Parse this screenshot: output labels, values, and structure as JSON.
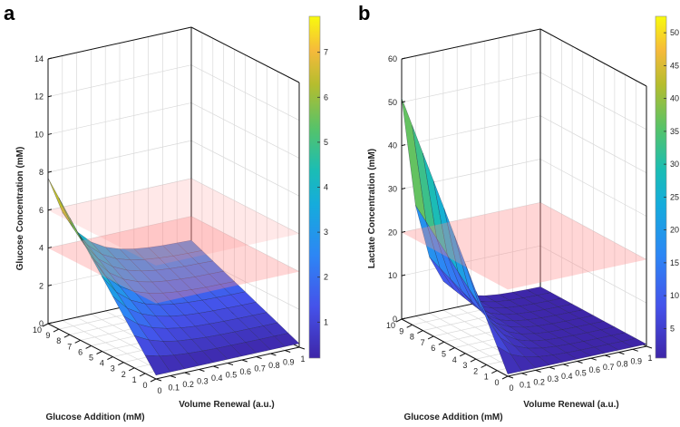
{
  "chart_data": [
    {
      "type": "surface",
      "panel_label": "a",
      "xlabel": "Volume Renewal (a.u.)",
      "ylabel": "Glucose Addition (mM)",
      "zlabel": "Glucose Concentration (mM)",
      "xlim": [
        0,
        1
      ],
      "ylim": [
        0,
        10
      ],
      "zlim": [
        0,
        14
      ],
      "x_ticks": [
        "0",
        "0.1",
        "0.2",
        "0.3",
        "0.4",
        "0.5",
        "0.6",
        "0.7",
        "0.8",
        "0.9",
        "1"
      ],
      "y_ticks": [
        "0",
        "1",
        "2",
        "3",
        "4",
        "5",
        "6",
        "7",
        "8",
        "9",
        "10"
      ],
      "z_ticks": [
        "0",
        "2",
        "4",
        "6",
        "8",
        "10",
        "12",
        "14"
      ],
      "x": [
        0,
        0.1,
        0.2,
        0.3,
        0.4,
        0.5,
        0.6,
        0.7,
        0.8,
        0.9,
        1
      ],
      "y": [
        0,
        1,
        2,
        3,
        4,
        5,
        6,
        7,
        8,
        9,
        10
      ],
      "z": [
        [
          0.2,
          0.2,
          0.2,
          0.2,
          0.2,
          0.2,
          0.2,
          0.2,
          0.2,
          0.2,
          0.2
        ],
        [
          0.95,
          0.75,
          0.63,
          0.56,
          0.52,
          0.49,
          0.48,
          0.47,
          0.46,
          0.46,
          0.45
        ],
        [
          1.7,
          1.31,
          1.07,
          0.92,
          0.84,
          0.78,
          0.75,
          0.73,
          0.72,
          0.71,
          0.71
        ],
        [
          2.45,
          1.86,
          1.5,
          1.29,
          1.15,
          1.07,
          1.03,
          1.0,
          0.98,
          0.97,
          0.96
        ],
        [
          3.2,
          2.41,
          1.94,
          1.65,
          1.47,
          1.36,
          1.3,
          1.26,
          1.24,
          1.22,
          1.21
        ],
        [
          3.95,
          2.97,
          2.37,
          2.01,
          1.79,
          1.66,
          1.58,
          1.53,
          1.5,
          1.48,
          1.47
        ],
        [
          4.7,
          3.52,
          2.8,
          2.37,
          2.11,
          1.95,
          1.85,
          1.79,
          1.75,
          1.74,
          1.72
        ],
        [
          5.45,
          4.07,
          3.24,
          2.73,
          2.43,
          2.24,
          2.13,
          2.06,
          2.01,
          1.99,
          1.97
        ],
        [
          6.2,
          4.62,
          3.67,
          3.1,
          2.74,
          2.53,
          2.4,
          2.32,
          2.27,
          2.25,
          2.22
        ],
        [
          6.95,
          5.18,
          4.11,
          3.46,
          3.06,
          2.82,
          2.68,
          2.59,
          2.53,
          2.5,
          2.48
        ],
        [
          7.7,
          5.73,
          4.54,
          3.82,
          3.38,
          3.11,
          2.95,
          2.85,
          2.79,
          2.76,
          2.73
        ]
      ],
      "threshold_planes": [
        4,
        6
      ],
      "colorbar": {
        "range": [
          0.2,
          7.8
        ],
        "ticks": [
          "1",
          "2",
          "3",
          "4",
          "5",
          "6",
          "7"
        ]
      }
    },
    {
      "type": "surface",
      "panel_label": "b",
      "xlabel": "Volume Renewal (a.u.)",
      "ylabel": "Glucose Addition (mM)",
      "zlabel": "Lactate Concentration (mM)",
      "xlim": [
        0,
        1
      ],
      "ylim": [
        0,
        10
      ],
      "zlim": [
        0,
        60
      ],
      "x_ticks": [
        "0",
        "0.1",
        "0.2",
        "0.3",
        "0.4",
        "0.5",
        "0.6",
        "0.7",
        "0.8",
        "0.9",
        "1"
      ],
      "y_ticks": [
        "0",
        "1",
        "2",
        "3",
        "4",
        "5",
        "6",
        "7",
        "8",
        "9",
        "10"
      ],
      "z_ticks": [
        "0",
        "10",
        "20",
        "30",
        "40",
        "50",
        "60"
      ],
      "x": [
        0,
        0.1,
        0.2,
        0.3,
        0.4,
        0.5,
        0.6,
        0.7,
        0.8,
        0.9,
        1
      ],
      "y": [
        0,
        1,
        2,
        3,
        4,
        5,
        6,
        7,
        8,
        9,
        10
      ],
      "z": [
        [
          0.5,
          0.5,
          0.5,
          0.5,
          0.5,
          0.5,
          0.5,
          0.5,
          0.5,
          0.5,
          0.5
        ],
        [
          5.55,
          3.01,
          1.75,
          1.12,
          0.81,
          0.65,
          0.58,
          0.54,
          0.52,
          0.51,
          0.5
        ],
        [
          10.6,
          5.52,
          2.99,
          1.74,
          1.11,
          0.81,
          0.65,
          0.57,
          0.54,
          0.52,
          0.51
        ],
        [
          15.65,
          8.02,
          4.24,
          2.36,
          1.42,
          0.96,
          0.73,
          0.61,
          0.56,
          0.53,
          0.52
        ],
        [
          20.7,
          10.53,
          5.48,
          2.98,
          1.73,
          1.11,
          0.8,
          0.65,
          0.58,
          0.54,
          0.52
        ],
        [
          25.75,
          13.04,
          6.73,
          3.6,
          2.04,
          1.27,
          0.88,
          0.69,
          0.6,
          0.55,
          0.53
        ],
        [
          30.8,
          15.55,
          7.97,
          4.21,
          2.34,
          1.42,
          0.96,
          0.72,
          0.61,
          0.55,
          0.53
        ],
        [
          35.85,
          18.06,
          9.22,
          4.83,
          2.65,
          1.57,
          1.03,
          0.76,
          0.63,
          0.56,
          0.54
        ],
        [
          40.9,
          20.56,
          10.46,
          5.45,
          2.96,
          1.72,
          1.11,
          0.8,
          0.65,
          0.57,
          0.54
        ],
        [
          45.95,
          23.07,
          11.71,
          6.07,
          3.26,
          1.88,
          1.18,
          0.83,
          0.67,
          0.58,
          0.55
        ],
        [
          51.0,
          25.58,
          12.95,
          6.69,
          3.57,
          2.03,
          1.26,
          0.87,
          0.69,
          0.59,
          0.55
        ]
      ],
      "threshold_planes": [
        20
      ],
      "colorbar": {
        "range": [
          0.5,
          52.5
        ],
        "ticks": [
          "5",
          "10",
          "15",
          "20",
          "25",
          "30",
          "35",
          "40",
          "45",
          "50"
        ]
      }
    }
  ]
}
